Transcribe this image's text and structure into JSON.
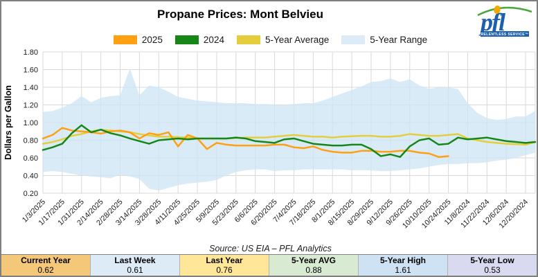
{
  "header": {
    "title": "Propane Prices: Mont Belvieu"
  },
  "logo": {
    "text": "pfl",
    "tagline": "RELENTLESS SERVICE™",
    "blue": "#1c5fac",
    "orange": "#f5a700",
    "green": "#4ca83a"
  },
  "legend": [
    {
      "label": "2025"
    },
    {
      "label": "2024"
    },
    {
      "label": "5-Year Average"
    },
    {
      "label": "5-Year Range"
    }
  ],
  "source": "Source: US EIA – PFL Analytics",
  "stats": [
    {
      "label": "Current Year",
      "value": "0.62",
      "color": "#f5c779"
    },
    {
      "label": "Last Week",
      "value": "0.61",
      "color": "#ddebf7"
    },
    {
      "label": "Last Year",
      "value": "0.76",
      "color": "#ffe699"
    },
    {
      "label": "5-Year AVG",
      "value": "0.88",
      "color": "#d9ead3"
    },
    {
      "label": "5-Year High",
      "value": "1.61",
      "color": "#cfe2f3"
    },
    {
      "label": "5-Year Low",
      "value": "0.53",
      "color": "#d9d9f0"
    }
  ],
  "chart_data": {
    "type": "line",
    "title": "Propane Prices: Mont Belvieu",
    "xlabel": "",
    "ylabel": "Dollars per Gallon",
    "ylim": [
      0.2,
      1.8
    ],
    "ytick_step": 0.2,
    "grid": true,
    "legend_position": "top",
    "tick_every": 2,
    "categories": [
      "1/3/2025",
      "1/10/2025",
      "1/17/2025",
      "1/24/2025",
      "1/31/2025",
      "2/7/2025",
      "2/14/2025",
      "2/21/2025",
      "2/28/2025",
      "3/7/2025",
      "3/14/2025",
      "3/21/2025",
      "3/28/2025",
      "4/4/2025",
      "4/11/2025",
      "4/18/2025",
      "4/25/2025",
      "5/2/2025",
      "5/9/2025",
      "5/16/2025",
      "5/23/2025",
      "5/30/2025",
      "6/6/2025",
      "6/13/2025",
      "6/20/2025",
      "6/27/2025",
      "7/4/2025",
      "7/11/2025",
      "7/18/2025",
      "7/25/2025",
      "8/1/2025",
      "8/8/2025",
      "8/15/2025",
      "8/22/2025",
      "8/29/2025",
      "9/5/2025",
      "9/12/2025",
      "9/19/2025",
      "9/26/2025",
      "10/3/2025",
      "10/10/2025",
      "10/17/2025",
      "10/24/2025",
      "11/1/2024",
      "11/8/2024",
      "11/15/2024",
      "11/22/2024",
      "11/29/2024",
      "12/6/2024",
      "12/13/2024",
      "12/20/2024",
      "12/27/2024"
    ],
    "series": [
      {
        "name": "2025",
        "color": "#ffa012",
        "values": [
          0.82,
          0.86,
          0.94,
          0.91,
          0.9,
          0.89,
          0.875,
          0.9,
          0.91,
          0.89,
          0.82,
          0.88,
          0.86,
          0.89,
          0.73,
          0.86,
          0.82,
          0.7,
          0.77,
          0.75,
          0.74,
          0.74,
          0.74,
          0.74,
          0.75,
          0.75,
          0.72,
          0.71,
          0.73,
          0.69,
          0.67,
          0.66,
          0.66,
          0.68,
          0.68,
          0.67,
          0.67,
          0.68,
          0.68,
          0.66,
          0.65,
          0.61,
          0.62
        ]
      },
      {
        "name": "2024",
        "color": "#168716",
        "values": [
          0.69,
          0.72,
          0.76,
          0.88,
          0.97,
          0.89,
          0.92,
          0.88,
          0.855,
          0.82,
          0.79,
          0.76,
          0.8,
          0.81,
          0.82,
          0.81,
          0.82,
          0.82,
          0.82,
          0.82,
          0.83,
          0.82,
          0.79,
          0.78,
          0.77,
          0.81,
          0.82,
          0.79,
          0.76,
          0.75,
          0.74,
          0.74,
          0.75,
          0.75,
          0.7,
          0.62,
          0.64,
          0.61,
          0.73,
          0.8,
          0.82,
          0.75,
          0.76,
          0.83,
          0.81,
          0.82,
          0.83,
          0.81,
          0.79,
          0.78,
          0.77,
          0.78
        ]
      },
      {
        "name": "5-Year Average",
        "color": "#e4ce3e",
        "values": [
          0.76,
          0.78,
          0.81,
          0.85,
          0.87,
          0.9,
          0.92,
          0.91,
          0.9,
          0.89,
          0.87,
          0.855,
          0.84,
          0.84,
          0.835,
          0.83,
          0.82,
          0.82,
          0.82,
          0.82,
          0.825,
          0.83,
          0.83,
          0.83,
          0.84,
          0.85,
          0.86,
          0.85,
          0.84,
          0.84,
          0.83,
          0.84,
          0.845,
          0.85,
          0.85,
          0.84,
          0.84,
          0.85,
          0.87,
          0.86,
          0.85,
          0.85,
          0.86,
          0.87,
          0.82,
          0.8,
          0.78,
          0.77,
          0.76,
          0.755,
          0.75,
          0.78
        ]
      }
    ],
    "range_band": {
      "name": "5-Year Range",
      "color": "#cde4f6",
      "swatch": "#dcebf7",
      "high": [
        1.12,
        1.13,
        1.17,
        1.22,
        1.3,
        1.23,
        1.28,
        1.3,
        1.31,
        1.61,
        1.31,
        1.42,
        1.4,
        1.35,
        1.29,
        1.27,
        1.25,
        1.24,
        1.23,
        1.22,
        1.22,
        1.22,
        1.21,
        1.21,
        1.2,
        1.2,
        1.21,
        1.22,
        1.22,
        1.25,
        1.29,
        1.33,
        1.37,
        1.41,
        1.46,
        1.47,
        1.5,
        1.46,
        1.49,
        1.42,
        1.38,
        1.4,
        1.4,
        1.38,
        1.22,
        1.11,
        1.05,
        1.03,
        1.04,
        1.07,
        1.07,
        1.13
      ],
      "low": [
        0.44,
        0.45,
        0.44,
        0.42,
        0.4,
        0.39,
        0.38,
        0.37,
        0.41,
        0.39,
        0.36,
        0.25,
        0.23,
        0.26,
        0.29,
        0.31,
        0.32,
        0.33,
        0.35,
        0.4,
        0.44,
        0.46,
        0.47,
        0.47,
        0.45,
        0.46,
        0.46,
        0.47,
        0.47,
        0.47,
        0.47,
        0.47,
        0.46,
        0.46,
        0.46,
        0.45,
        0.45,
        0.46,
        0.47,
        0.48,
        0.5,
        0.52,
        0.53,
        0.53,
        0.54,
        0.54,
        0.55,
        0.57,
        0.58,
        0.6,
        0.63,
        0.66
      ]
    }
  }
}
